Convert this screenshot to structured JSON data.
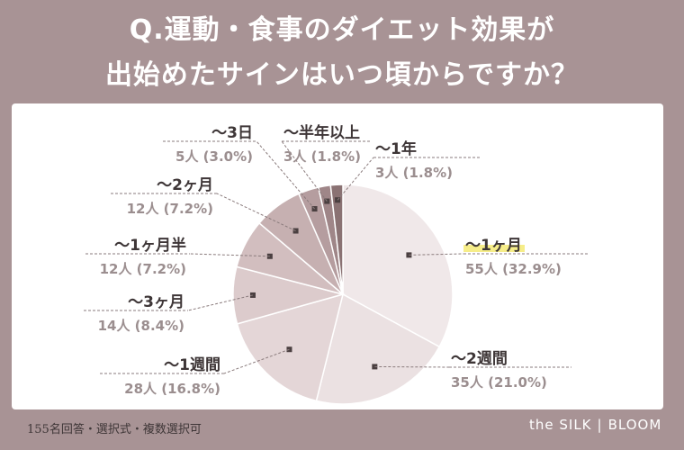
{
  "header": {
    "title_line1": "Q.運動・食事のダイエット効果が",
    "title_line2": "出始めたサインはいつ頃からですか？"
  },
  "footer": {
    "note": "155名回答・選択式・複数選択可",
    "brand_left": "the SILK",
    "brand_right": "BLOOM"
  },
  "chart_data": {
    "type": "pie",
    "title": "Q.運動・食事のダイエット効果が出始めたサインはいつ頃からですか？",
    "total_respondents": 155,
    "slices": [
      {
        "label": "〜1ヶ月",
        "count": 55,
        "value_text": "55人 (32.9%)",
        "percent": 32.9,
        "color": "#f0e8e9"
      },
      {
        "label": "〜2週間",
        "count": 35,
        "value_text": "35人 (21.0%)",
        "percent": 21.0,
        "color": "#ebe1e2"
      },
      {
        "label": "〜1週間",
        "count": 28,
        "value_text": "28人 (16.8%)",
        "percent": 16.8,
        "color": "#e4d6d7"
      },
      {
        "label": "〜3ヶ月",
        "count": 14,
        "value_text": "14人 (8.4%)",
        "percent": 8.4,
        "color": "#dccbcc"
      },
      {
        "label": "〜1ヶ月半",
        "count": 12,
        "value_text": "12人 (7.2%)",
        "percent": 7.2,
        "color": "#d2bebf"
      },
      {
        "label": "〜2ヶ月",
        "count": 12,
        "value_text": "12人 (7.2%)",
        "percent": 7.2,
        "color": "#c6b0b1"
      },
      {
        "label": "〜3日",
        "count": 5,
        "value_text": "5人 (3.0%)",
        "percent": 3.0,
        "color": "#b59d9f"
      },
      {
        "label": "〜半年以上",
        "count": 3,
        "value_text": "3人 (1.8%)",
        "percent": 1.8,
        "color": "#9f8688"
      },
      {
        "label": "〜1年",
        "count": 3,
        "value_text": "3人 (1.8%)",
        "percent": 1.8,
        "color": "#8a7273"
      }
    ],
    "highlight_label": "〜1ヶ月",
    "highlight_color": "#f4ea74"
  }
}
